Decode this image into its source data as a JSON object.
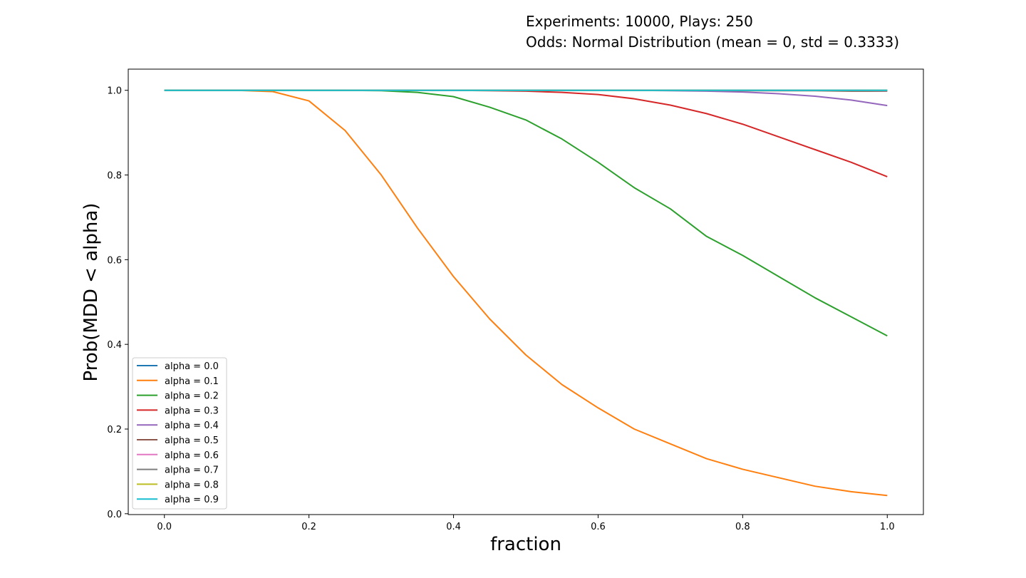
{
  "chart_data": {
    "type": "line",
    "title_lines": [
      "Experiments: 10000, Plays: 250",
      "Odds: Normal Distribution (mean = 0, std = 0.3333)"
    ],
    "xlabel": "fraction",
    "ylabel": "Prob(MDD < alpha)",
    "xlim": [
      -0.05,
      1.05
    ],
    "ylim": [
      -0.002,
      1.05
    ],
    "xticks": [
      0.0,
      0.2,
      0.4,
      0.6,
      0.8,
      1.0
    ],
    "xtick_labels": [
      "0.0",
      "0.2",
      "0.4",
      "0.6",
      "0.8",
      "1.0"
    ],
    "yticks": [
      0.0,
      0.2,
      0.4,
      0.6,
      0.8,
      1.0
    ],
    "ytick_labels": [
      "0.0",
      "0.2",
      "0.4",
      "0.6",
      "0.8",
      "1.0"
    ],
    "legend_position": "lower-left",
    "x": [
      0.0,
      0.05,
      0.1,
      0.15,
      0.2,
      0.25,
      0.3,
      0.35,
      0.4,
      0.45,
      0.5,
      0.55,
      0.6,
      0.65,
      0.7,
      0.75,
      0.8,
      0.85,
      0.9,
      0.95,
      1.0
    ],
    "series": [
      {
        "name": "alpha = 0.0",
        "color": "#1f77b4",
        "values": [
          1,
          1,
          1,
          1,
          1,
          1,
          1,
          1,
          1,
          1,
          1,
          1,
          1,
          1,
          1,
          1,
          1,
          1,
          1,
          1,
          1
        ]
      },
      {
        "name": "alpha = 0.1",
        "color": "#ff7f0e",
        "values": [
          1.0,
          1.0,
          1.0,
          0.997,
          0.975,
          0.905,
          0.8,
          0.675,
          0.56,
          0.46,
          0.375,
          0.305,
          0.25,
          0.2,
          0.165,
          0.13,
          0.105,
          0.085,
          0.065,
          0.052,
          0.043
        ]
      },
      {
        "name": "alpha = 0.2",
        "color": "#2ca02c",
        "values": [
          1,
          1,
          1,
          1,
          1,
          1,
          0.999,
          0.995,
          0.985,
          0.96,
          0.93,
          0.885,
          0.83,
          0.77,
          0.72,
          0.655,
          0.61,
          0.56,
          0.51,
          0.465,
          0.42
        ]
      },
      {
        "name": "alpha = 0.3",
        "color": "#d62728",
        "values": [
          1,
          1,
          1,
          1,
          1,
          1,
          1,
          1,
          1,
          0.999,
          0.998,
          0.995,
          0.99,
          0.98,
          0.965,
          0.945,
          0.92,
          0.89,
          0.86,
          0.83,
          0.796
        ]
      },
      {
        "name": "alpha = 0.4",
        "color": "#9467bd",
        "values": [
          1,
          1,
          1,
          1,
          1,
          1,
          1,
          1,
          1,
          1,
          1,
          1,
          1,
          1,
          0.999,
          0.998,
          0.996,
          0.992,
          0.986,
          0.977,
          0.964
        ]
      },
      {
        "name": "alpha = 0.5",
        "color": "#8c564b",
        "values": [
          1,
          1,
          1,
          1,
          1,
          1,
          1,
          1,
          1,
          1,
          1,
          1,
          1,
          1,
          1,
          1,
          0.999,
          0.999,
          0.999,
          0.998,
          0.998
        ]
      },
      {
        "name": "alpha = 0.6",
        "color": "#e377c2",
        "values": [
          1,
          1,
          1,
          1,
          1,
          1,
          1,
          1,
          1,
          1,
          1,
          1,
          1,
          1,
          1,
          1,
          1,
          1,
          1,
          1,
          0.999
        ]
      },
      {
        "name": "alpha = 0.7",
        "color": "#7f7f7f",
        "values": [
          1,
          1,
          1,
          1,
          1,
          1,
          1,
          1,
          1,
          1,
          1,
          1,
          1,
          1,
          1,
          1,
          1,
          1,
          1,
          1,
          1
        ]
      },
      {
        "name": "alpha = 0.8",
        "color": "#bcbd22",
        "values": [
          1,
          1,
          1,
          1,
          1,
          1,
          1,
          1,
          1,
          1,
          1,
          1,
          1,
          1,
          1,
          1,
          1,
          1,
          1,
          1,
          1
        ]
      },
      {
        "name": "alpha = 0.9",
        "color": "#17becf",
        "values": [
          1,
          1,
          1,
          1,
          1,
          1,
          1,
          1,
          1,
          1,
          1,
          1,
          1,
          1,
          1,
          1,
          1,
          1,
          1,
          1,
          1
        ]
      }
    ]
  }
}
